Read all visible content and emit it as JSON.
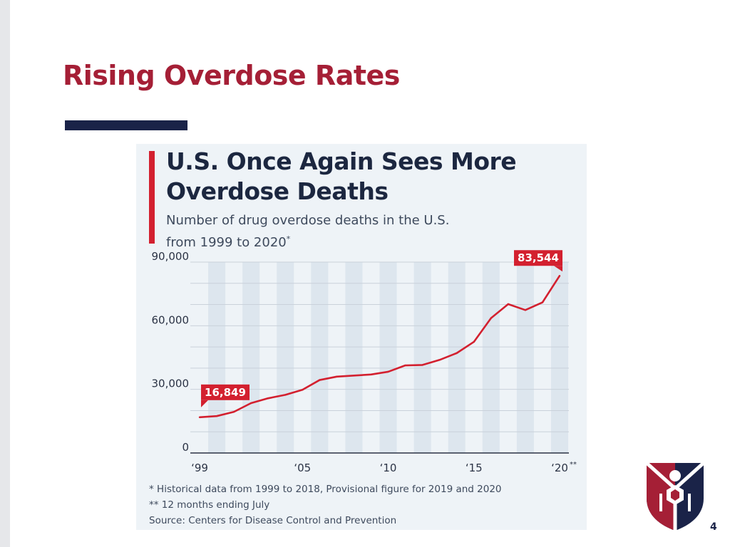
{
  "slide": {
    "title": "Rising Overdose Rates",
    "page_number": "4",
    "colors": {
      "title": "#a51f36",
      "rule": "#1a2348",
      "accent": "#d3202f",
      "line": "#d3202f"
    }
  },
  "chart_data": {
    "type": "line",
    "title": "U.S. Once Again Sees More Overdose Deaths",
    "subtitle": "Number of drug overdose deaths in the U.S. from 1999 to 2020",
    "subtitle_marker": "*",
    "x": [
      1999,
      2000,
      2001,
      2002,
      2003,
      2004,
      2005,
      2006,
      2007,
      2008,
      2009,
      2010,
      2011,
      2012,
      2013,
      2014,
      2015,
      2016,
      2017,
      2018,
      2019,
      2020
    ],
    "series": [
      {
        "values": [
          16849,
          17400,
          19400,
          23500,
          25800,
          27400,
          29800,
          34400,
          36000,
          36500,
          37000,
          38300,
          41300,
          41500,
          43900,
          47100,
          52400,
          63600,
          70200,
          67400,
          71000,
          83544
        ],
        "color": "#d3202f"
      }
    ],
    "ylim": [
      0,
      90000
    ],
    "ytick_labels": [
      "0",
      "30,000",
      "60,000",
      "90,000"
    ],
    "xtick_labels": [
      "‘99",
      "‘05",
      "‘10",
      "‘15",
      "‘20"
    ],
    "xtick_marker": "**",
    "data_labels": [
      {
        "text": "16,849",
        "x": 1999
      },
      {
        "text": "83,544",
        "x": 2020
      }
    ],
    "footnotes": [
      "*   Historical data from 1999 to 2018, Provisional figure for 2019 and 2020",
      "** 12 months ending July"
    ],
    "source": "Source: Centers for Disease Control and Prevention",
    "grid": true
  }
}
